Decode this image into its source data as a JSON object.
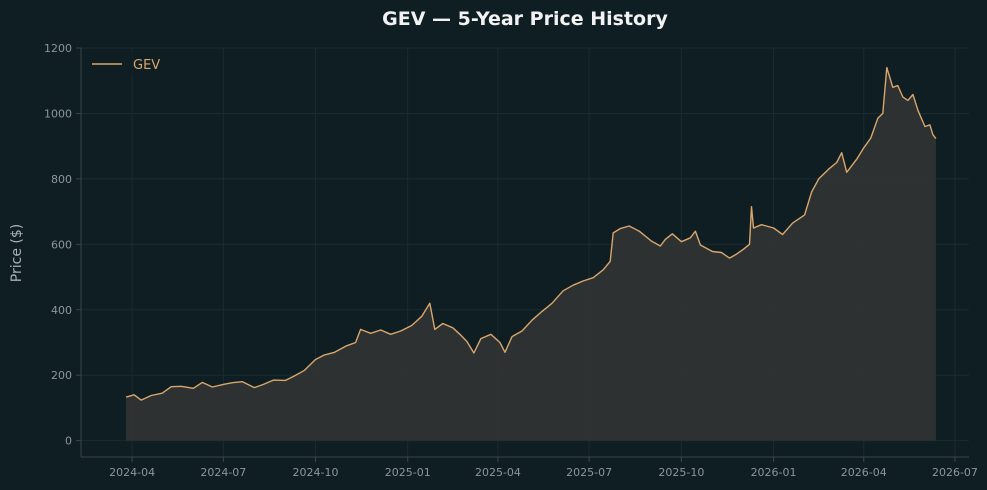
{
  "chart_data": {
    "type": "area",
    "title": "GEV — 5-Year Price History",
    "ylabel": "Price ($)",
    "xlabel": "",
    "ylim": [
      -50,
      1200
    ],
    "xlim": [
      "2024-02-10",
      "2026-07-15"
    ],
    "grid": true,
    "legend_position": "top-left",
    "colors": {
      "background": "#0f1e23",
      "line": "#d9a66b",
      "fill": "#2f3333",
      "grid": "#1a2b31",
      "axis": "#3a464a"
    },
    "y_ticks": [
      0,
      200,
      400,
      600,
      800,
      1000,
      1200
    ],
    "x_ticks": [
      {
        "date": "2024-04-01",
        "label": "2024-04"
      },
      {
        "date": "2024-07-01",
        "label": "2024-07"
      },
      {
        "date": "2024-10-01",
        "label": "2024-10"
      },
      {
        "date": "2025-01-01",
        "label": "2025-01"
      },
      {
        "date": "2025-04-01",
        "label": "2025-04"
      },
      {
        "date": "2025-07-01",
        "label": "2025-07"
      },
      {
        "date": "2025-10-01",
        "label": "2025-10"
      },
      {
        "date": "2026-01-01",
        "label": "2026-01"
      },
      {
        "date": "2026-04-01",
        "label": "2026-04"
      },
      {
        "date": "2026-07-01",
        "label": "2026-07"
      }
    ],
    "series": [
      {
        "name": "GEV",
        "points": [
          [
            "2024-03-26",
            133
          ],
          [
            "2024-04-03",
            140
          ],
          [
            "2024-04-10",
            124
          ],
          [
            "2024-04-20",
            138
          ],
          [
            "2024-05-01",
            145
          ],
          [
            "2024-05-10",
            165
          ],
          [
            "2024-05-20",
            166
          ],
          [
            "2024-06-01",
            160
          ],
          [
            "2024-06-10",
            178
          ],
          [
            "2024-06-20",
            164
          ],
          [
            "2024-07-01",
            172
          ],
          [
            "2024-07-10",
            177
          ],
          [
            "2024-07-20",
            180
          ],
          [
            "2024-08-01",
            162
          ],
          [
            "2024-08-10",
            172
          ],
          [
            "2024-08-20",
            185
          ],
          [
            "2024-09-01",
            184
          ],
          [
            "2024-09-10",
            198
          ],
          [
            "2024-09-20",
            215
          ],
          [
            "2024-10-01",
            248
          ],
          [
            "2024-10-10",
            262
          ],
          [
            "2024-10-20",
            270
          ],
          [
            "2024-11-01",
            290
          ],
          [
            "2024-11-10",
            300
          ],
          [
            "2024-11-15",
            340
          ],
          [
            "2024-11-25",
            328
          ],
          [
            "2024-12-05",
            338
          ],
          [
            "2024-12-15",
            325
          ],
          [
            "2024-12-25",
            335
          ],
          [
            "2025-01-05",
            352
          ],
          [
            "2025-01-15",
            380
          ],
          [
            "2025-01-23",
            420
          ],
          [
            "2025-01-28",
            340
          ],
          [
            "2025-02-05",
            358
          ],
          [
            "2025-02-15",
            345
          ],
          [
            "2025-02-22",
            325
          ],
          [
            "2025-03-01",
            303
          ],
          [
            "2025-03-08",
            268
          ],
          [
            "2025-03-15",
            312
          ],
          [
            "2025-03-25",
            325
          ],
          [
            "2025-04-03",
            300
          ],
          [
            "2025-04-08",
            270
          ],
          [
            "2025-04-15",
            318
          ],
          [
            "2025-04-25",
            335
          ],
          [
            "2025-05-05",
            368
          ],
          [
            "2025-05-15",
            395
          ],
          [
            "2025-05-25",
            420
          ],
          [
            "2025-06-05",
            458
          ],
          [
            "2025-06-15",
            475
          ],
          [
            "2025-06-25",
            488
          ],
          [
            "2025-07-05",
            498
          ],
          [
            "2025-07-15",
            522
          ],
          [
            "2025-07-22",
            548
          ],
          [
            "2025-07-25",
            635
          ],
          [
            "2025-08-01",
            648
          ],
          [
            "2025-08-10",
            656
          ],
          [
            "2025-08-20",
            640
          ],
          [
            "2025-09-01",
            610
          ],
          [
            "2025-09-10",
            595
          ],
          [
            "2025-09-15",
            615
          ],
          [
            "2025-09-22",
            632
          ],
          [
            "2025-10-01",
            608
          ],
          [
            "2025-10-10",
            620
          ],
          [
            "2025-10-15",
            640
          ],
          [
            "2025-10-20",
            598
          ],
          [
            "2025-11-01",
            578
          ],
          [
            "2025-11-10",
            575
          ],
          [
            "2025-11-18",
            558
          ],
          [
            "2025-11-25",
            570
          ],
          [
            "2025-12-02",
            585
          ],
          [
            "2025-12-08",
            600
          ],
          [
            "2025-12-10",
            715
          ],
          [
            "2025-12-12",
            650
          ],
          [
            "2025-12-20",
            660
          ],
          [
            "2026-01-01",
            650
          ],
          [
            "2026-01-10",
            630
          ],
          [
            "2026-01-20",
            665
          ],
          [
            "2026-02-01",
            690
          ],
          [
            "2026-02-08",
            760
          ],
          [
            "2026-02-15",
            800
          ],
          [
            "2026-02-25",
            830
          ],
          [
            "2026-03-05",
            850
          ],
          [
            "2026-03-10",
            880
          ],
          [
            "2026-03-15",
            820
          ],
          [
            "2026-03-25",
            860
          ],
          [
            "2026-04-01",
            895
          ],
          [
            "2026-04-08",
            925
          ],
          [
            "2026-04-15",
            985
          ],
          [
            "2026-04-20",
            1000
          ],
          [
            "2026-04-24",
            1140
          ],
          [
            "2026-04-30",
            1080
          ],
          [
            "2026-05-05",
            1085
          ],
          [
            "2026-05-10",
            1050
          ],
          [
            "2026-05-15",
            1040
          ],
          [
            "2026-05-20",
            1058
          ],
          [
            "2026-05-25",
            1010
          ],
          [
            "2026-06-01",
            960
          ],
          [
            "2026-06-06",
            965
          ],
          [
            "2026-06-09",
            935
          ],
          [
            "2026-06-12",
            923
          ]
        ]
      }
    ]
  }
}
